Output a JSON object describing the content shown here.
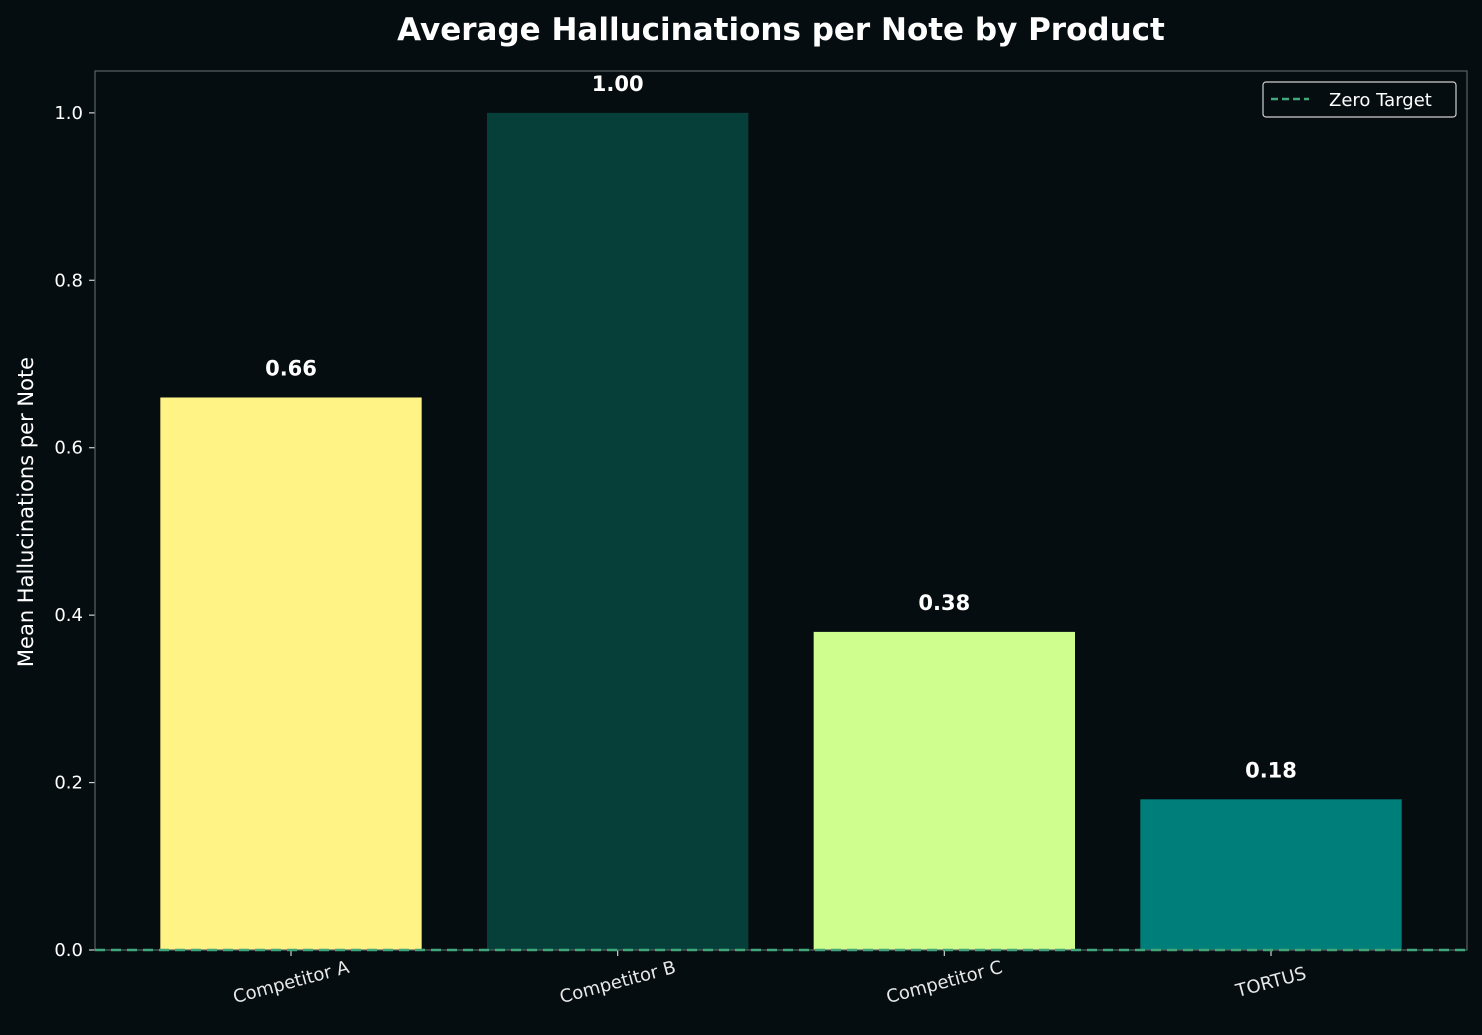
{
  "chart_data": {
    "type": "bar",
    "title": "Average Hallucinations per Note by Product",
    "xlabel": "",
    "ylabel": "Mean Hallucinations per Note",
    "categories": [
      "Competitor A",
      "Competitor B",
      "Competitor C",
      "TORTUS"
    ],
    "values": [
      0.66,
      1.0,
      0.38,
      0.18
    ],
    "value_labels": [
      "0.66",
      "1.00",
      "0.38",
      "0.18"
    ],
    "colors": [
      "#fff385",
      "#063f3a",
      "#d0fe8e",
      "#007f7a"
    ],
    "ylim": [
      0,
      1.05
    ],
    "yticks": [
      0.0,
      0.2,
      0.4,
      0.6,
      0.8,
      1.0
    ],
    "ytick_labels": [
      "0.0",
      "0.2",
      "0.4",
      "0.6",
      "0.8",
      "1.0"
    ],
    "grid": false,
    "reference_line": {
      "value": 0,
      "style": "dashed",
      "color": "#3fa77a",
      "label": "Zero Target"
    },
    "legend": {
      "position": "top-right",
      "entries": [
        "Zero Target"
      ]
    },
    "background": "#060d11"
  }
}
